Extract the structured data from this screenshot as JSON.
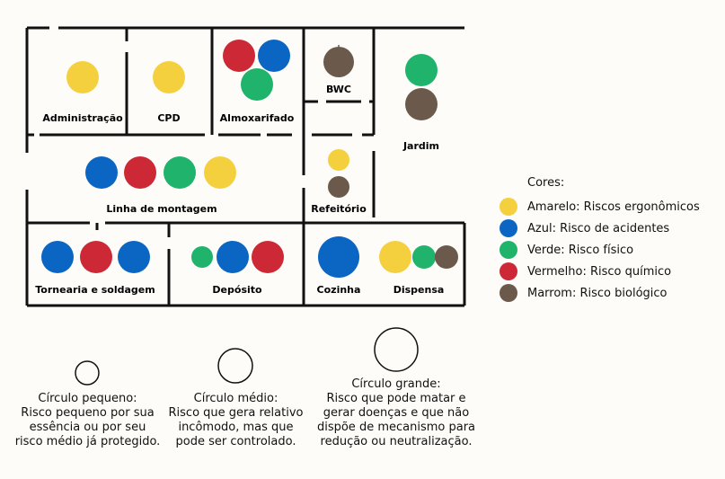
{
  "rooms": {
    "administracao": "Administração",
    "cpd": "CPD",
    "almoxarifado": "Almoxarifado",
    "bwc": "BWC",
    "jardim": "Jardim",
    "linha_montagem": "Linha de montagem",
    "refeitorio": "Refeitório",
    "tornearia": "Tornearia e soldagem",
    "deposito": "Depósito",
    "cozinha": "Cozinha",
    "dispensa": "Dispensa"
  },
  "colors": {
    "amarelo": "#f4d03f",
    "azul": "#0b66c3",
    "verde": "#1fb36b",
    "vermelho": "#cc2836",
    "marrom": "#6b5a4b",
    "wall": "#111111"
  },
  "risks": [
    {
      "room": "administracao",
      "color": "amarelo",
      "size": "grande"
    },
    {
      "room": "cpd",
      "color": "amarelo",
      "size": "grande"
    },
    {
      "room": "almoxarifado",
      "color": "vermelho",
      "size": "grande"
    },
    {
      "room": "almoxarifado",
      "color": "azul",
      "size": "grande"
    },
    {
      "room": "almoxarifado",
      "color": "verde",
      "size": "grande"
    },
    {
      "room": "bwc",
      "color": "marrom",
      "size": "grande"
    },
    {
      "room": "jardim",
      "color": "verde",
      "size": "grande"
    },
    {
      "room": "jardim",
      "color": "marrom",
      "size": "grande"
    },
    {
      "room": "linha_montagem",
      "color": "azul",
      "size": "grande"
    },
    {
      "room": "linha_montagem",
      "color": "vermelho",
      "size": "grande"
    },
    {
      "room": "linha_montagem",
      "color": "verde",
      "size": "grande"
    },
    {
      "room": "linha_montagem",
      "color": "amarelo",
      "size": "grande"
    },
    {
      "room": "refeitorio",
      "color": "amarelo",
      "size": "pequeno"
    },
    {
      "room": "refeitorio",
      "color": "marrom",
      "size": "pequeno"
    },
    {
      "room": "tornearia",
      "color": "azul",
      "size": "grande"
    },
    {
      "room": "tornearia",
      "color": "vermelho",
      "size": "grande"
    },
    {
      "room": "tornearia",
      "color": "azul",
      "size": "grande"
    },
    {
      "room": "deposito",
      "color": "verde",
      "size": "pequeno"
    },
    {
      "room": "deposito",
      "color": "azul",
      "size": "grande"
    },
    {
      "room": "deposito",
      "color": "vermelho",
      "size": "grande"
    },
    {
      "room": "cozinha",
      "color": "azul",
      "size": "grande"
    },
    {
      "room": "dispensa",
      "color": "amarelo",
      "size": "grande"
    },
    {
      "room": "dispensa",
      "color": "verde",
      "size": "medio"
    },
    {
      "room": "dispensa",
      "color": "marrom",
      "size": "medio"
    }
  ],
  "legend": {
    "title": "Cores:",
    "items": [
      {
        "color": "amarelo",
        "label": "Amarelo: Riscos ergonômicos"
      },
      {
        "color": "azul",
        "label": "Azul: Risco de acidentes"
      },
      {
        "color": "verde",
        "label": "Verde: Risco físico"
      },
      {
        "color": "vermelho",
        "label": "Vermelho: Risco químico"
      },
      {
        "color": "marrom",
        "label": "Marrom: Risco biológico"
      }
    ]
  },
  "sizes": [
    {
      "key": "pequeno",
      "title": "Círculo pequeno:",
      "lines": [
        "Risco pequeno por sua",
        "essência ou por seu",
        "risco médio já protegido."
      ]
    },
    {
      "key": "medio",
      "title": "Círculo médio:",
      "lines": [
        "Risco que gera relativo",
        "incômodo, mas que",
        "pode ser controlado."
      ]
    },
    {
      "key": "grande",
      "title": "Círculo grande:",
      "lines": [
        "Risco que pode matar e",
        "gerar doenças e que não",
        "dispõe de mecanismo para",
        "redução ou neutralização."
      ]
    }
  ]
}
